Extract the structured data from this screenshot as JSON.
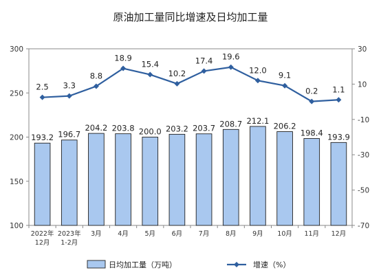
{
  "chart_data": {
    "type": "bar",
    "title": "原油加工量同比增速及日均加工量",
    "categories": [
      [
        "2022年",
        "12月"
      ],
      [
        "2023年",
        "1-2月"
      ],
      [
        "3月"
      ],
      [
        "4月"
      ],
      [
        "5月"
      ],
      [
        "6月"
      ],
      [
        "7月"
      ],
      [
        "8月"
      ],
      [
        "9月"
      ],
      [
        "10月"
      ],
      [
        "11月"
      ],
      [
        "12月"
      ]
    ],
    "series": [
      {
        "name": "日均加工量（万吨）",
        "type": "bar",
        "axis": "left",
        "color": "#a9c8ef",
        "values": [
          193.2,
          196.7,
          204.2,
          203.8,
          200.0,
          203.2,
          203.7,
          208.7,
          212.1,
          206.2,
          198.4,
          193.9
        ],
        "labels": [
          "193.2",
          "196.7",
          "204.2",
          "203.8",
          "200.0",
          "203.2",
          "203.7",
          "208.7",
          "212.1",
          "206.2",
          "198.4",
          "193.9"
        ]
      },
      {
        "name": "增速（%）",
        "type": "line",
        "axis": "right",
        "color": "#2f5f9f",
        "values": [
          2.5,
          3.3,
          8.8,
          18.9,
          15.4,
          10.2,
          17.4,
          19.6,
          12.0,
          9.1,
          0.2,
          1.1
        ],
        "labels": [
          "2.5",
          "3.3",
          "8.8",
          "18.9",
          "15.4",
          "10.2",
          "17.4",
          "19.6",
          "12.0",
          "9.1",
          "0.2",
          "1.1"
        ]
      }
    ],
    "y_left": {
      "min": 100,
      "max": 300,
      "ticks": [
        "100",
        "150",
        "200",
        "250",
        "300"
      ]
    },
    "y_right": {
      "min": -70,
      "max": 30,
      "ticks": [
        "-70",
        "-50",
        "-30",
        "-10",
        "10",
        "30"
      ]
    },
    "grid": false,
    "legend": "bottom"
  }
}
